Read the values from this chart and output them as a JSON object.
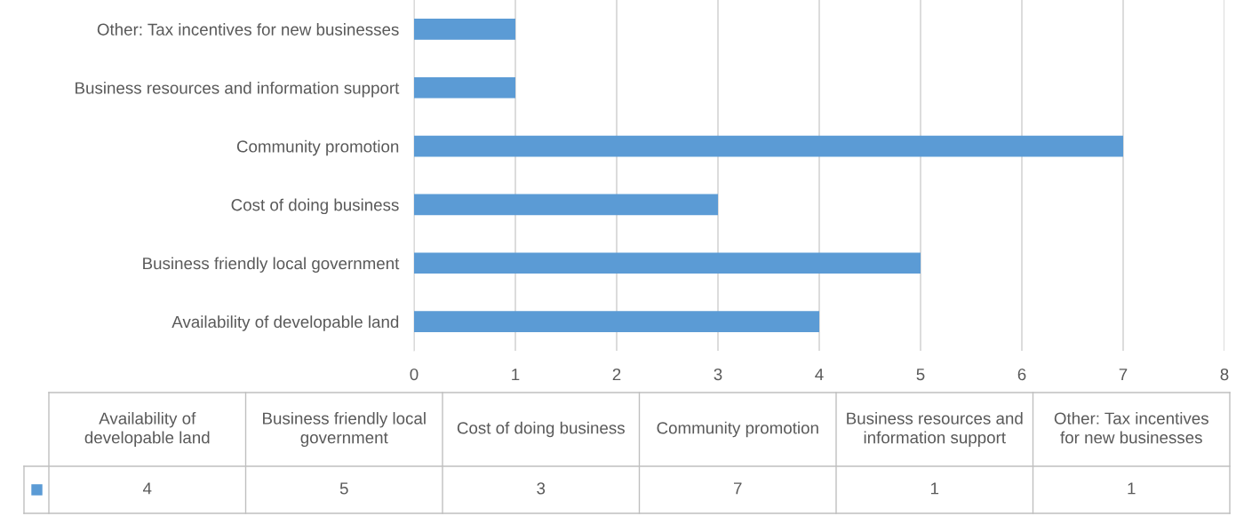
{
  "chart_data": [
    {
      "type": "bar",
      "orientation": "horizontal",
      "categories": [
        "Other: Tax incentives for new businesses",
        "Business resources and information support",
        "Community promotion",
        "Cost of doing business",
        "Business friendly local government",
        "Availability of developable land"
      ],
      "values": [
        1,
        1,
        7,
        3,
        5,
        4
      ],
      "color": "#5b9bd5",
      "xlim": [
        0,
        8
      ],
      "xticks": [
        0,
        1,
        2,
        3,
        4,
        5,
        6,
        7,
        8
      ],
      "grid": "x"
    },
    {
      "type": "other",
      "categories": [
        "Availability of developable land",
        "Business friendly local government",
        "Cost of doing business",
        "Community promotion",
        "Business resources and information support",
        "Other: Tax incentives for new businesses"
      ],
      "values": [
        4,
        5,
        3,
        7,
        1,
        1
      ],
      "value_labels": [
        "4",
        "5",
        "3",
        "7",
        "1",
        "1"
      ],
      "color": "#5b9bd5"
    }
  ]
}
